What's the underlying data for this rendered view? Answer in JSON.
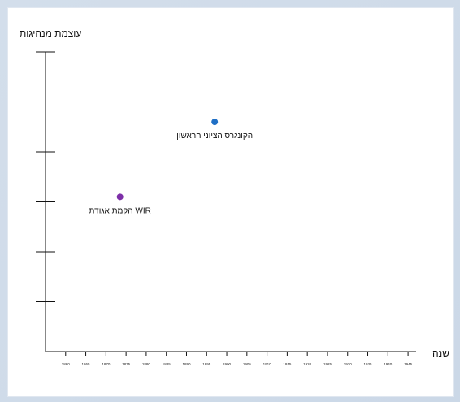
{
  "chart_data": {
    "type": "scatter",
    "title": "",
    "ylabel": "עוצמת מנהיגות",
    "xlabel": "שנה",
    "x_tick_labels": [
      "1860",
      "1865",
      "1870",
      "1875",
      "1880",
      "1885",
      "1890",
      "1895",
      "1900",
      "1905",
      "1910",
      "1915",
      "1920",
      "1925",
      "1930",
      "1935",
      "1940",
      "1945"
    ],
    "xlim": [
      1855,
      1947
    ],
    "ylim": [
      0,
      6
    ],
    "y_ticks": [
      1,
      2,
      3,
      4,
      5,
      6
    ],
    "grid": false,
    "points": [
      {
        "label": "הקמת אגודת WIR",
        "x": 1873.5,
        "y": 3.1,
        "color": "#7d2fa8"
      },
      {
        "label": "הקונגרס הציוני הראשון",
        "x": 1897,
        "y": 4.6,
        "color": "#1f6fc5"
      }
    ]
  }
}
